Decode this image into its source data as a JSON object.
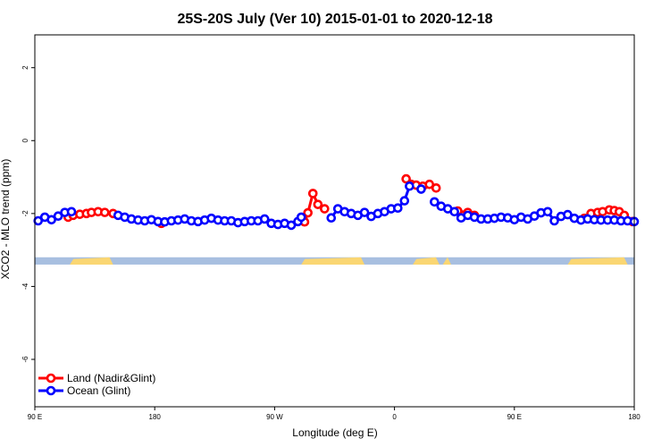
{
  "chart_data": {
    "type": "line",
    "title": "25S-20S July (Ver 10)   2015-01-01 to 2020-12-18",
    "xlabel": "Longitude (deg E)",
    "ylabel": "XCO2 - MLO trend (ppm)",
    "xlim": [
      90,
      450
    ],
    "ylim": [
      -7.3,
      2.9
    ],
    "x_ticks": [
      {
        "value": 90,
        "label": "90 E"
      },
      {
        "value": 162,
        "label": "180"
      },
      {
        "value": 234,
        "label": "90 W"
      },
      {
        "value": 306,
        "label": "0"
      },
      {
        "value": 378,
        "label": "90 E"
      },
      {
        "value": 450,
        "label": "180"
      }
    ],
    "y_ticks": [
      {
        "value": 2,
        "label": "2"
      },
      {
        "value": 0,
        "label": "0"
      },
      {
        "value": -2,
        "label": "-2"
      },
      {
        "value": -4,
        "label": "-4"
      },
      {
        "value": -6,
        "label": "-6"
      }
    ],
    "grid": false,
    "legend_position": "bottom-left",
    "land_mask": {
      "y_top": -3.2,
      "y_bottom": -3.4,
      "ocean_color": "#a8bfe0",
      "land_color": "#fad673",
      "land_segments": [
        [
          111,
          137
        ],
        [
          250,
          288
        ],
        [
          317,
          333
        ],
        [
          335,
          340
        ],
        [
          410,
          446
        ]
      ]
    },
    "series": [
      {
        "name": "Land (Nadir&Glint)",
        "color": "#ff0000",
        "x": [
          110,
          113,
          117,
          121,
          124,
          128,
          132,
          137,
          166,
          252,
          254,
          257,
          260,
          264,
          313,
          316,
          319,
          323,
          327,
          331,
          344,
          350,
          354,
          420,
          424,
          428,
          431,
          435,
          438,
          441,
          444,
          449
        ],
        "y": [
          -2.1,
          -2.05,
          -2.02,
          -2.0,
          -1.97,
          -1.95,
          -1.97,
          -2.0,
          -2.27,
          -2.23,
          -1.98,
          -1.45,
          -1.75,
          -1.87,
          -1.05,
          -1.2,
          -1.22,
          -1.25,
          -1.2,
          -1.3,
          -1.93,
          -1.97,
          -2.05,
          -2.13,
          -2.0,
          -1.97,
          -1.95,
          -1.9,
          -1.92,
          -1.95,
          -2.05,
          -2.22
        ]
      },
      {
        "name": "Ocean (Glint)",
        "color": "#0000ff",
        "x": [
          92,
          96,
          100,
          104,
          108,
          112,
          140,
          144,
          148,
          152,
          156,
          160,
          164,
          168,
          172,
          176,
          180,
          184,
          188,
          192,
          196,
          200,
          204,
          208,
          212,
          216,
          220,
          224,
          228,
          232,
          236,
          240,
          244,
          248,
          250,
          268,
          272,
          276,
          280,
          284,
          288,
          292,
          296,
          300,
          304,
          308,
          312,
          315,
          322,
          330,
          334,
          338,
          342,
          346,
          350,
          354,
          358,
          362,
          366,
          370,
          374,
          378,
          382,
          386,
          390,
          394,
          398,
          402,
          406,
          410,
          414,
          418,
          422,
          426,
          430,
          434,
          438,
          442,
          446,
          450
        ],
        "y": [
          -2.2,
          -2.1,
          -2.17,
          -2.07,
          -1.97,
          -1.95,
          -2.05,
          -2.1,
          -2.15,
          -2.18,
          -2.2,
          -2.17,
          -2.22,
          -2.23,
          -2.2,
          -2.18,
          -2.15,
          -2.2,
          -2.22,
          -2.18,
          -2.13,
          -2.18,
          -2.2,
          -2.2,
          -2.25,
          -2.22,
          -2.2,
          -2.2,
          -2.15,
          -2.27,
          -2.3,
          -2.27,
          -2.32,
          -2.22,
          -2.1,
          -2.12,
          -1.87,
          -1.95,
          -2.0,
          -2.05,
          -1.97,
          -2.08,
          -2.0,
          -1.95,
          -1.87,
          -1.85,
          -1.65,
          -1.25,
          -1.33,
          -1.68,
          -1.8,
          -1.87,
          -1.95,
          -2.12,
          -2.05,
          -2.1,
          -2.15,
          -2.15,
          -2.13,
          -2.1,
          -2.12,
          -2.17,
          -2.1,
          -2.15,
          -2.07,
          -1.98,
          -1.95,
          -2.2,
          -2.08,
          -2.03,
          -2.13,
          -2.18,
          -2.15,
          -2.17,
          -2.18,
          -2.18,
          -2.18,
          -2.2,
          -2.2,
          -2.22
        ]
      }
    ]
  }
}
